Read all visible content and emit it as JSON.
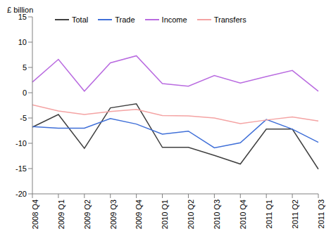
{
  "chart_data": {
    "type": "line",
    "y_label": "£ billion",
    "categories": [
      "2008 Q4",
      "2009 Q1",
      "2009 Q2",
      "2009 Q3",
      "2009 Q4",
      "2010 Q1",
      "2010 Q2",
      "2010 Q3",
      "2010 Q4",
      "2011 Q1",
      "2011 Q2",
      "2011 Q3"
    ],
    "series": [
      {
        "name": "Total",
        "color": "#404040",
        "values": [
          -6.8,
          -4.3,
          -11.0,
          -3.0,
          -2.2,
          -10.8,
          -10.8,
          -12.4,
          -14.1,
          -7.2,
          -7.2,
          -15.1
        ]
      },
      {
        "name": "Trade",
        "color": "#3f6fd8",
        "values": [
          -6.7,
          -7.0,
          -7.0,
          -5.1,
          -6.2,
          -8.2,
          -7.6,
          -10.9,
          -9.9,
          -5.3,
          -7.2,
          -9.8
        ]
      },
      {
        "name": "Income",
        "color": "#b96be0",
        "values": [
          2.1,
          6.6,
          0.3,
          5.9,
          7.3,
          1.8,
          1.3,
          3.4,
          1.9,
          3.2,
          4.4,
          0.3
        ]
      },
      {
        "name": "Transfers",
        "color": "#f4a3a3",
        "values": [
          -2.4,
          -3.6,
          -4.3,
          -3.7,
          -3.3,
          -4.5,
          -4.6,
          -5.0,
          -6.1,
          -5.4,
          -4.8,
          -5.6
        ]
      }
    ],
    "ylim": [
      -20,
      15
    ],
    "yticks": [
      -20,
      -15,
      -10,
      -5,
      0,
      5,
      10,
      15
    ],
    "grid": false,
    "legend": "top"
  }
}
